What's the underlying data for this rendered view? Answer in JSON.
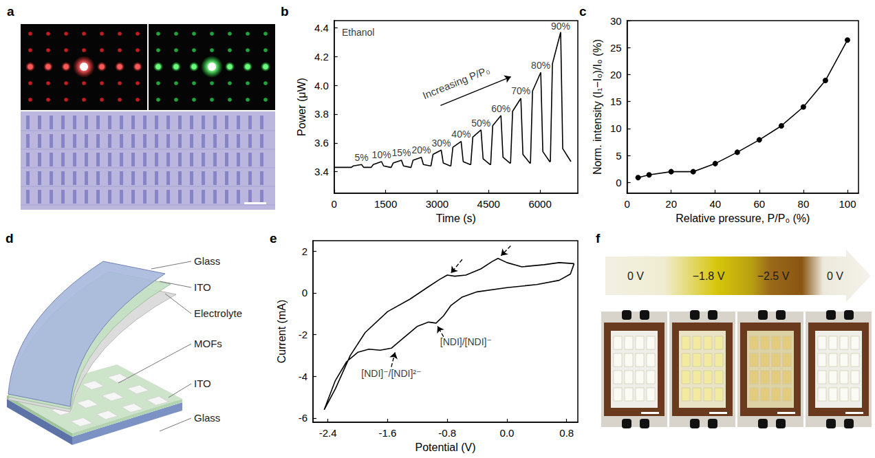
{
  "chart_data": [
    {
      "panel": "b",
      "type": "line",
      "x_label": "Time (s)",
      "y_label": "Power (μW)",
      "color": "#000000",
      "line_style": "solid",
      "x": [
        0,
        400,
        500,
        560,
        800,
        860,
        1060,
        1080,
        1140,
        1380,
        1440,
        1640,
        1660,
        1720,
        1960,
        2020,
        2220,
        2240,
        2300,
        2540,
        2600,
        2800,
        2820,
        2880,
        3120,
        3180,
        3380,
        3400,
        3460,
        3700,
        3760,
        3960,
        3980,
        4040,
        4280,
        4340,
        4540,
        4560,
        4620,
        4860,
        4920,
        5120,
        5140,
        5200,
        5440,
        5500,
        5700,
        5720,
        5780,
        6020,
        6080,
        6280,
        6300,
        6360,
        6600,
        6660,
        6900
      ],
      "values": [
        3.43,
        3.43,
        3.43,
        3.44,
        3.45,
        3.43,
        3.43,
        3.43,
        3.45,
        3.47,
        3.44,
        3.43,
        3.43,
        3.46,
        3.48,
        3.44,
        3.43,
        3.43,
        3.48,
        3.5,
        3.45,
        3.44,
        3.44,
        3.52,
        3.55,
        3.46,
        3.44,
        3.44,
        3.57,
        3.61,
        3.47,
        3.45,
        3.45,
        3.64,
        3.69,
        3.49,
        3.45,
        3.45,
        3.72,
        3.79,
        3.5,
        3.46,
        3.46,
        3.82,
        3.91,
        3.52,
        3.46,
        3.46,
        3.96,
        4.09,
        3.54,
        3.47,
        3.47,
        4.15,
        4.37,
        3.56,
        3.47
      ],
      "xlim": [
        0,
        7100
      ],
      "xticks": [
        0,
        1500,
        3000,
        4500,
        6000
      ],
      "ylim": [
        3.25,
        4.45
      ],
      "yticks": [
        3.4,
        3.6,
        3.8,
        {
          "value": 4,
          "label": "4.0"
        },
        4.2,
        4.4
      ],
      "grid": false,
      "annotations": [
        {
          "text": "Ethanol",
          "x": 700,
          "y": 4.37
        },
        {
          "text": "5%",
          "x": 800,
          "y": 3.5
        },
        {
          "text": "10%",
          "x": 1380,
          "y": 3.52
        },
        {
          "text": "15%",
          "x": 1960,
          "y": 3.53
        },
        {
          "text": "20%",
          "x": 2540,
          "y": 3.55
        },
        {
          "text": "30%",
          "x": 3120,
          "y": 3.6
        },
        {
          "text": "40%",
          "x": 3700,
          "y": 3.66
        },
        {
          "text": "50%",
          "x": 4280,
          "y": 3.74
        },
        {
          "text": "60%",
          "x": 4860,
          "y": 3.84
        },
        {
          "text": "70%",
          "x": 5440,
          "y": 3.96
        },
        {
          "text": "80%",
          "x": 6020,
          "y": 4.14
        },
        {
          "text": "90%",
          "x": 6600,
          "y": 4.41
        }
      ],
      "trend": {
        "text": "Increasing P/P₀",
        "x": 3550,
        "y": 4.02,
        "arrow": [
          [
            3100,
            3.86
          ],
          [
            5150,
            4.06
          ]
        ]
      }
    },
    {
      "panel": "c",
      "type": "line",
      "marker": "circle",
      "line_style": "solid",
      "color": "#000000",
      "x_label": "Relative pressure, P/P₀ (%)",
      "y_label": "Norm. intensity (I₁−I₀)/I₀ (%)",
      "x": [
        5,
        10,
        20,
        30,
        40,
        50,
        60,
        70,
        80,
        90,
        100
      ],
      "values": [
        0.9,
        1.4,
        2.0,
        2.0,
        3.5,
        5.6,
        7.9,
        10.5,
        14.0,
        18.9,
        26.4
      ],
      "xlim": [
        0,
        105
      ],
      "xticks": [
        0,
        20,
        40,
        60,
        80,
        100
      ],
      "ylim": [
        -2,
        30
      ],
      "yticks": [
        0,
        5,
        10,
        15,
        20,
        25,
        30
      ],
      "grid": false
    },
    {
      "panel": "e",
      "type": "line",
      "line_style": "solid",
      "color": "#000000",
      "x_label": "Potential (V)",
      "y_label": "Current (mA)",
      "x": [
        0.9,
        0.85,
        0.7,
        0.4,
        0.0,
        -0.4,
        -0.6,
        -0.75,
        -0.85,
        -0.95,
        -1.05,
        -1.2,
        -1.4,
        -1.55,
        -1.7,
        -1.85,
        -2.0,
        -2.15,
        -2.3,
        -2.45,
        -2.3,
        -2.1,
        -1.9,
        -1.6,
        -1.3,
        -1.05,
        -0.9,
        -0.8,
        -0.7,
        -0.55,
        -0.35,
        -0.2,
        -0.12,
        0.0,
        0.2,
        0.5,
        0.7,
        0.9
      ],
      "values": [
        1.4,
        0.9,
        0.6,
        0.4,
        0.25,
        0.05,
        -0.2,
        -0.6,
        -1.1,
        -1.45,
        -1.4,
        -1.6,
        -2.2,
        -2.65,
        -2.75,
        -2.7,
        -2.85,
        -3.3,
        -4.2,
        -5.6,
        -4.6,
        -3.0,
        -1.9,
        -0.9,
        -0.3,
        0.3,
        0.65,
        0.85,
        0.8,
        0.85,
        1.15,
        1.5,
        1.65,
        1.45,
        1.25,
        1.35,
        1.45,
        1.4
      ],
      "xlim": [
        -2.6,
        0.95
      ],
      "xticks": [
        -2.4,
        -1.6,
        -0.8,
        {
          "value": 0,
          "label": "0.0"
        },
        0.8
      ],
      "ylim": [
        -6.2,
        2.5
      ],
      "yticks": [
        -6,
        -4,
        -2,
        0,
        2
      ],
      "grid": false,
      "annotations": [
        {
          "text": "[NDI]/[NDI]⁻",
          "x": -0.55,
          "y": -2.35,
          "arrow": [
            [
              -0.85,
              -2.1
            ],
            [
              -0.93,
              -1.6
            ]
          ]
        },
        {
          "text": "[NDI]⁻/[NDI]²⁻",
          "x": -1.55,
          "y": -3.85,
          "arrow": [
            [
              -1.55,
              -3.55
            ],
            [
              -1.5,
              -2.85
            ]
          ]
        }
      ],
      "arrows": [
        [
          [
            -0.6,
            1.6
          ],
          [
            -0.75,
            0.95
          ]
        ],
        [
          [
            0.05,
            2.25
          ],
          [
            -0.08,
            1.78
          ]
        ]
      ]
    }
  ],
  "figure": {
    "panels": [
      {
        "letter": "a"
      },
      {
        "letter": "d",
        "labels": [
          "Glass",
          "ITO",
          "Electrolyte",
          "MOFs",
          "ITO",
          "Glass"
        ]
      },
      {
        "letter": "f",
        "labels": [
          "0 V",
          "−1.8 V",
          "−2.5 V",
          "0 V"
        ]
      }
    ]
  }
}
